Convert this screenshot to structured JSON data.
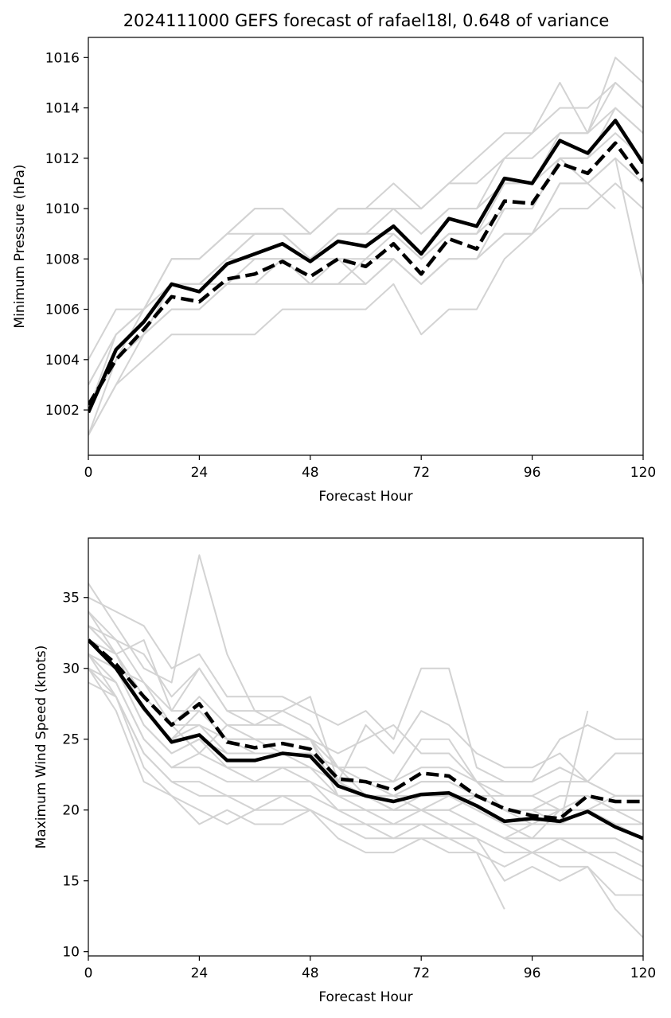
{
  "title": "2024111000 GEFS forecast of rafael18l, 0.648 of variance",
  "colors": {
    "members": "#d3d3d3",
    "mean": "#000000",
    "background": "#ffffff"
  },
  "chart_data": [
    {
      "type": "line",
      "panel": "top",
      "xlabel": "Forecast Hour",
      "ylabel": "Minimum Pressure (hPa)",
      "xlim": [
        0,
        120
      ],
      "ylim": [
        1000.2,
        1016.8
      ],
      "xticks": [
        0,
        24,
        48,
        72,
        96,
        120
      ],
      "yticks": [
        1002,
        1004,
        1006,
        1008,
        1010,
        1012,
        1014,
        1016
      ],
      "x": [
        0,
        6,
        12,
        18,
        24,
        30,
        36,
        42,
        48,
        54,
        60,
        66,
        72,
        78,
        84,
        90,
        96,
        102,
        108,
        114,
        120
      ],
      "series": [
        {
          "role": "solid-black",
          "values": [
            1001.9,
            1004.4,
            1005.5,
            1007.0,
            1006.7,
            1007.8,
            1008.2,
            1008.6,
            1007.9,
            1008.7,
            1008.5,
            1009.3,
            1008.2,
            1009.6,
            1009.3,
            1011.2,
            1011.0,
            1012.7,
            1012.2,
            1013.5,
            1011.8
          ]
        },
        {
          "role": "dashed-black",
          "values": [
            1002.2,
            1004.0,
            1005.2,
            1006.5,
            1006.3,
            1007.2,
            1007.4,
            1007.9,
            1007.3,
            1008.0,
            1007.7,
            1008.6,
            1007.4,
            1008.8,
            1008.4,
            1010.3,
            1010.2,
            1011.8,
            1011.4,
            1012.6,
            1011.1
          ]
        },
        {
          "role": "member",
          "values": [
            1001,
            1003,
            1004,
            1005,
            1005,
            1005,
            1005,
            1006,
            1006,
            1006,
            1006,
            1007,
            1005,
            1006,
            1006,
            1008,
            1009,
            1010,
            1010,
            1011,
            1010
          ]
        },
        {
          "role": "member",
          "values": [
            1001,
            1004,
            1005,
            1006,
            1006,
            1007,
            1007,
            1007,
            1007,
            1007,
            1008,
            1008,
            1007,
            1008,
            1008,
            1009,
            1009,
            1011,
            1011,
            1012,
            1007
          ]
        },
        {
          "role": "member",
          "values": [
            1002,
            1004,
            1005,
            1007,
            1007,
            1008,
            1008,
            1008,
            1008,
            1008,
            1008,
            1009,
            1008,
            1009,
            1009,
            1010,
            1010,
            1012,
            1011,
            1012,
            1011
          ]
        },
        {
          "role": "member",
          "values": [
            1002,
            1004,
            1006,
            1007,
            1007,
            1008,
            1009,
            1009,
            1008,
            1009,
            1009,
            1009,
            1008,
            1009,
            1009,
            1011,
            1011,
            1012,
            1012,
            1013,
            1012
          ]
        },
        {
          "role": "member",
          "values": [
            1002,
            1005,
            1006,
            1007,
            1007,
            1008,
            1009,
            1009,
            1008,
            1009,
            1009,
            1010,
            1009,
            1010,
            1010,
            1011,
            1011,
            1013,
            1013,
            1014,
            1013
          ]
        },
        {
          "role": "member",
          "values": [
            1003,
            1005,
            1006,
            1008,
            1008,
            1009,
            1009,
            1009,
            1009,
            1010,
            1010,
            1010,
            1009,
            1010,
            1010,
            1012,
            1012,
            1013,
            1013,
            1015,
            1014
          ]
        },
        {
          "role": "member",
          "values": [
            1003,
            1005,
            1006,
            1008,
            1008,
            1009,
            1010,
            1010,
            1009,
            1010,
            1010,
            1011,
            1010,
            1011,
            1011,
            1012,
            1013,
            1014,
            1014,
            1015,
            1014
          ]
        },
        {
          "role": "member",
          "values": [
            1004,
            1006,
            1006,
            1008,
            1008,
            1009,
            1010,
            1010,
            1009,
            1010,
            1010,
            1010,
            1010,
            1011,
            1012,
            1013,
            1013,
            1015,
            1013,
            1016,
            1015
          ]
        },
        {
          "role": "member",
          "values": [
            1002,
            1004,
            1005,
            1007,
            1007,
            1007,
            1008,
            1008,
            1007,
            1008,
            1007,
            1008,
            1007,
            1008,
            1008,
            1010,
            1010,
            1012,
            1012,
            1014,
            1013
          ]
        },
        {
          "role": "member",
          "values": [
            1001,
            1003,
            1005,
            1006,
            1006,
            1007,
            1007,
            1008,
            1007,
            1007,
            1007,
            1008,
            1007,
            1008,
            1008,
            1009,
            1009,
            1011,
            1011,
            1010,
            null
          ]
        }
      ]
    },
    {
      "type": "line",
      "panel": "bottom",
      "xlabel": "Forecast Hour",
      "ylabel": "Maximum Wind Speed (knots)",
      "xlim": [
        0,
        120
      ],
      "ylim": [
        9.7,
        39.2
      ],
      "xticks": [
        0,
        24,
        48,
        72,
        96,
        120
      ],
      "yticks": [
        10,
        15,
        20,
        25,
        30,
        35
      ],
      "x": [
        0,
        6,
        12,
        18,
        24,
        30,
        36,
        42,
        48,
        54,
        60,
        66,
        72,
        78,
        84,
        90,
        96,
        102,
        108,
        114,
        120
      ],
      "series": [
        {
          "role": "solid-black",
          "values": [
            32.0,
            30.0,
            27.2,
            24.8,
            25.3,
            23.5,
            23.5,
            24.0,
            23.8,
            21.7,
            21.0,
            20.6,
            21.1,
            21.2,
            20.3,
            19.2,
            19.4,
            19.2,
            19.9,
            18.8,
            18.0
          ]
        },
        {
          "role": "dashed-black",
          "values": [
            32.0,
            30.3,
            28.0,
            26.0,
            27.5,
            24.8,
            24.4,
            24.7,
            24.3,
            22.2,
            22.0,
            21.4,
            22.6,
            22.4,
            21.0,
            20.1,
            19.6,
            19.4,
            21.0,
            20.6,
            20.6
          ]
        },
        {
          "role": "member",
          "values": [
            36,
            33,
            30,
            29,
            38,
            31,
            27,
            26,
            25,
            24,
            25,
            26,
            24,
            24,
            22,
            20,
            19,
            20,
            20,
            21,
            21
          ]
        },
        {
          "role": "member",
          "values": [
            35,
            34,
            33,
            30,
            31,
            28,
            28,
            28,
            27,
            26,
            27,
            25,
            30,
            30,
            23,
            22,
            22,
            25,
            26,
            25,
            25
          ]
        },
        {
          "role": "member",
          "values": [
            34,
            32,
            29,
            27,
            30,
            27,
            27,
            27,
            28,
            22,
            26,
            24,
            27,
            26,
            24,
            23,
            23,
            24,
            22,
            24,
            24
          ]
        },
        {
          "role": "member",
          "values": [
            33,
            31,
            28,
            26,
            28,
            26,
            26,
            27,
            26,
            23,
            23,
            22,
            25,
            25,
            22,
            22,
            22,
            23,
            22,
            21,
            21
          ]
        },
        {
          "role": "member",
          "values": [
            33,
            31,
            27,
            25,
            27,
            25,
            25,
            25,
            25,
            23,
            22,
            22,
            23,
            23,
            22,
            21,
            21,
            22,
            22,
            21,
            21
          ]
        },
        {
          "role": "member",
          "values": [
            32,
            30,
            27,
            25,
            26,
            24,
            24,
            24,
            24,
            22,
            22,
            21,
            22,
            22,
            21,
            20,
            20,
            21,
            21,
            20,
            20
          ]
        },
        {
          "role": "member",
          "values": [
            32,
            30,
            26,
            24,
            25,
            24,
            24,
            24,
            24,
            22,
            21,
            21,
            21,
            21,
            21,
            20,
            20,
            20,
            20,
            20,
            19
          ]
        },
        {
          "role": "member",
          "values": [
            31,
            30,
            26,
            24,
            25,
            23,
            23,
            23,
            23,
            21,
            21,
            20,
            21,
            21,
            20,
            19,
            19,
            19,
            19,
            19,
            18
          ]
        },
        {
          "role": "member",
          "values": [
            31,
            29,
            25,
            23,
            24,
            23,
            22,
            23,
            22,
            21,
            20,
            20,
            20,
            20,
            19,
            18,
            18,
            18,
            18,
            18,
            17
          ]
        },
        {
          "role": "member",
          "values": [
            30,
            29,
            25,
            23,
            23,
            22,
            22,
            22,
            22,
            20,
            20,
            19,
            20,
            19,
            19,
            18,
            17,
            18,
            17,
            17,
            16
          ]
        },
        {
          "role": "member",
          "values": [
            30,
            28,
            24,
            22,
            22,
            21,
            21,
            21,
            21,
            20,
            19,
            19,
            19,
            19,
            18,
            17,
            17,
            17,
            17,
            16,
            15
          ]
        },
        {
          "role": "member",
          "values": [
            29,
            28,
            24,
            22,
            21,
            21,
            20,
            20,
            20,
            19,
            19,
            18,
            18,
            18,
            17,
            16,
            17,
            16,
            16,
            14,
            14
          ]
        },
        {
          "role": "member",
          "values": [
            30,
            27,
            22,
            21,
            19,
            20,
            19,
            19,
            20,
            18,
            17,
            17,
            18,
            17,
            17,
            13,
            null,
            null,
            null,
            null,
            null
          ]
        },
        {
          "role": "member",
          "values": [
            31,
            28,
            23,
            21,
            20,
            19,
            20,
            21,
            20,
            19,
            18,
            18,
            19,
            18,
            18,
            15,
            16,
            15,
            16,
            13,
            11
          ]
        },
        {
          "role": "member",
          "values": [
            32,
            31,
            28,
            26,
            24,
            26,
            25,
            24,
            24,
            23,
            21,
            20,
            20,
            19,
            19,
            18,
            19,
            19,
            27,
            null,
            null
          ]
        },
        {
          "role": "member",
          "values": [
            33,
            32,
            31,
            28,
            30,
            27,
            26,
            26,
            25,
            21,
            21,
            20,
            20,
            21,
            20,
            19,
            18,
            20,
            20,
            19,
            19
          ]
        },
        {
          "role": "member",
          "values": [
            34,
            31,
            32,
            27,
            27,
            25,
            25,
            25,
            25,
            22,
            22,
            21,
            20,
            20,
            21,
            21,
            21,
            20,
            21,
            20,
            20
          ]
        },
        {
          "role": "member",
          "values": [
            31,
            30,
            29,
            26,
            26,
            25,
            24,
            24,
            23,
            22,
            21,
            21,
            22,
            22,
            21,
            20,
            20,
            19,
            20,
            19,
            19
          ]
        }
      ]
    }
  ]
}
